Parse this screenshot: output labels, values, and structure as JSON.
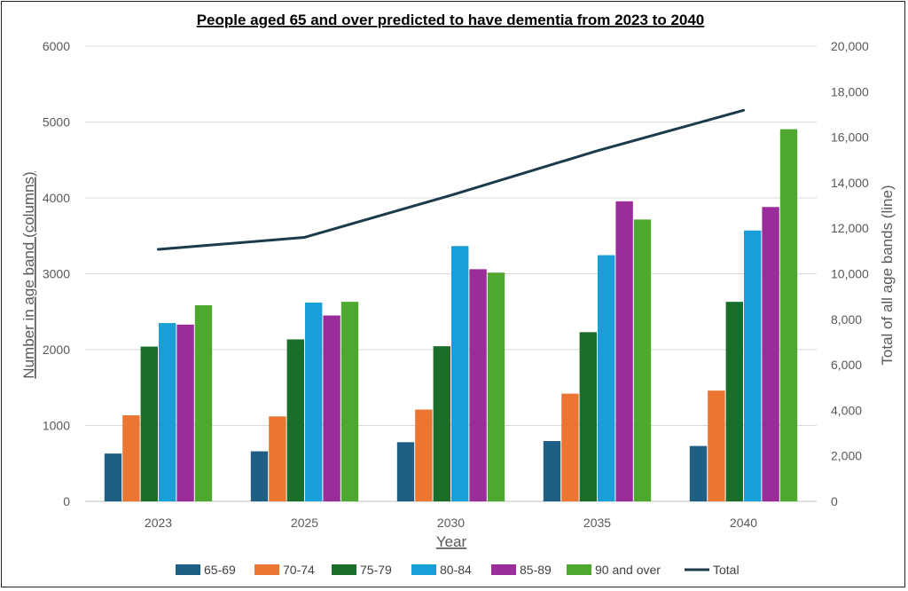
{
  "chart_data": {
    "type": "bar",
    "title": "People aged 65 and over predicted to have dementia from 2023 to 2040",
    "xlabel": "Year",
    "ylabel": "Number in age band (columns)",
    "y2label": "Total of all age bands (line)",
    "categories": [
      "2023",
      "2025",
      "2030",
      "2035",
      "2040"
    ],
    "ylim": [
      0,
      6000
    ],
    "y2lim": [
      0,
      20000
    ],
    "yticks": [
      "0",
      "1000",
      "2000",
      "3000",
      "4000",
      "5000",
      "6000"
    ],
    "y2ticks": [
      "0",
      "2,000",
      "4,000",
      "6,000",
      "8,000",
      "10,000",
      "12,000",
      "14,000",
      "16,000",
      "18,000",
      "20,000"
    ],
    "grid": true,
    "legend_position": "bottom",
    "series": [
      {
        "name": "65-69",
        "type": "bar",
        "color": "#1f5f86",
        "values": [
          630,
          660,
          780,
          795,
          730
        ]
      },
      {
        "name": "70-74",
        "type": "bar",
        "color": "#ea7631",
        "values": [
          1135,
          1120,
          1210,
          1420,
          1460
        ]
      },
      {
        "name": "75-79",
        "type": "bar",
        "color": "#1b6e2a",
        "values": [
          2040,
          2135,
          2045,
          2230,
          2630
        ]
      },
      {
        "name": "80-84",
        "type": "bar",
        "color": "#199ed8",
        "values": [
          2350,
          2620,
          3365,
          3245,
          3570
        ]
      },
      {
        "name": "85-89",
        "type": "bar",
        "color": "#9b2d9b",
        "values": [
          2330,
          2450,
          3060,
          3955,
          3880
        ]
      },
      {
        "name": "90 and over",
        "type": "bar",
        "color": "#4ea72e",
        "values": [
          2585,
          2630,
          3015,
          3715,
          4905
        ]
      },
      {
        "name": "Total",
        "type": "line",
        "axis": "right",
        "color": "#1b3a4b",
        "values": [
          11070,
          11600,
          13450,
          15400,
          17180
        ]
      }
    ]
  }
}
